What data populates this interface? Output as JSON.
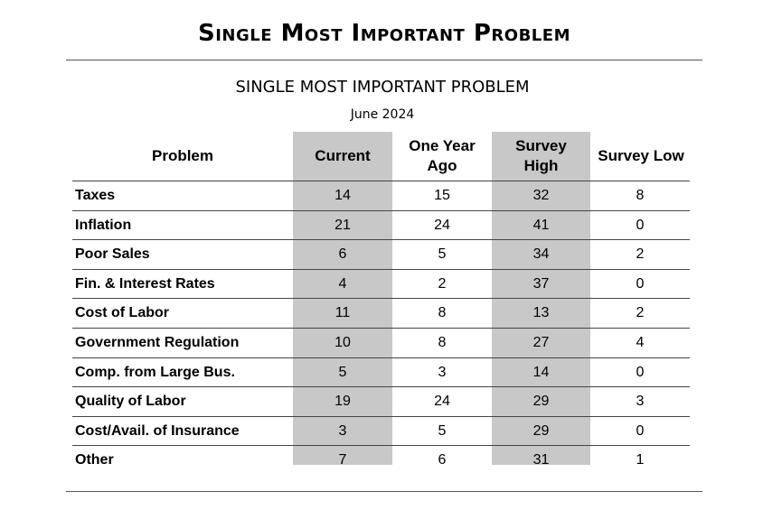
{
  "heading": "Single Most Important Problem",
  "table_title": "SINGLE MOST IMPORTANT PROBLEM",
  "date": "June 2024",
  "columns": {
    "problem": "Problem",
    "current": "Current",
    "ago_line1": "One Year",
    "ago_line2": "Ago",
    "high_line1": "Survey",
    "high_line2": "High",
    "low": "Survey Low"
  },
  "rows": [
    {
      "problem": "Taxes",
      "current": "14",
      "ago": "15",
      "high": "32",
      "low": "8"
    },
    {
      "problem": "Inflation",
      "current": "21",
      "ago": "24",
      "high": "41",
      "low": "0"
    },
    {
      "problem": "Poor Sales",
      "current": "6",
      "ago": "5",
      "high": "34",
      "low": "2"
    },
    {
      "problem": "Fin. & Interest Rates",
      "current": "4",
      "ago": "2",
      "high": "37",
      "low": "0"
    },
    {
      "problem": "Cost of Labor",
      "current": "11",
      "ago": "8",
      "high": "13",
      "low": "2"
    },
    {
      "problem": "Government Regulation",
      "current": "10",
      "ago": "8",
      "high": "27",
      "low": "4"
    },
    {
      "problem": "Comp. from Large Bus.",
      "current": "5",
      "ago": "3",
      "high": "14",
      "low": "0"
    },
    {
      "problem": "Quality of Labor",
      "current": "19",
      "ago": "24",
      "high": "29",
      "low": "3"
    },
    {
      "problem": "Cost/Avail. of Insurance",
      "current": "3",
      "ago": "5",
      "high": "29",
      "low": "0"
    },
    {
      "problem": "Other",
      "current": "7",
      "ago": "6",
      "high": "31",
      "low": "1"
    }
  ],
  "colors": {
    "shaded_column": "#c8c8c8",
    "rule": "#555555"
  }
}
